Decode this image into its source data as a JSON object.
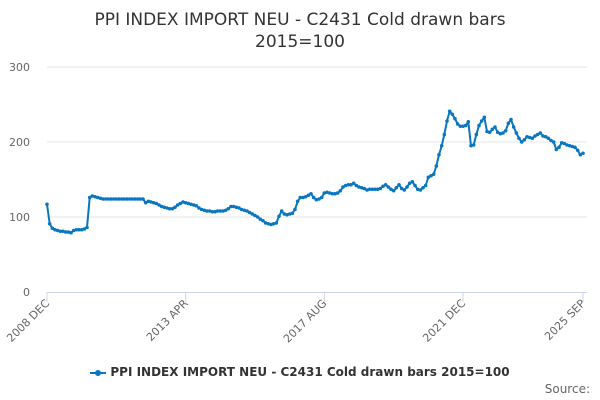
{
  "chart_data": {
    "type": "line",
    "title": "PPI INDEX IMPORT NEU - C2431 Cold drawn bars",
    "subtitle": "2015=100",
    "xlabel": "",
    "ylabel": "",
    "ylim": [
      0,
      300
    ],
    "yticks": [
      0,
      100,
      200,
      300
    ],
    "xticks": [
      "2008 DEC",
      "2013 APR",
      "2017 AUG",
      "2021 DEC",
      "2025 SEP"
    ],
    "grid": true,
    "legend_position": "bottom",
    "color": "#0a76bf",
    "x": [
      "2008 DEC",
      "2009 JAN",
      "2009 FEB",
      "2009 MAR",
      "2009 APR",
      "2009 MAY",
      "2009 JUN",
      "2009 JUL",
      "2009 AUG",
      "2009 SEP",
      "2009 OCT",
      "2009 NOV",
      "2009 DEC",
      "2010 JAN",
      "2010 FEB",
      "2010 MAR",
      "2010 APR",
      "2010 MAY",
      "2010 JUN",
      "2010 JUL",
      "2010 AUG",
      "2010 SEP",
      "2010 OCT",
      "2010 NOV",
      "2010 DEC",
      "2011 JAN",
      "2011 FEB",
      "2011 MAR",
      "2011 APR",
      "2011 MAY",
      "2011 JUN",
      "2011 JUL",
      "2011 AUG",
      "2011 SEP",
      "2011 OCT",
      "2011 NOV",
      "2011 DEC",
      "2012 JAN",
      "2012 FEB",
      "2012 MAR",
      "2012 APR",
      "2012 MAY",
      "2012 JUN",
      "2012 JUL",
      "2012 AUG",
      "2012 SEP",
      "2012 OCT",
      "2012 NOV",
      "2012 DEC",
      "2013 JAN",
      "2013 FEB",
      "2013 MAR",
      "2013 APR",
      "2013 MAY",
      "2013 JUN",
      "2013 JUL",
      "2013 AUG",
      "2013 SEP",
      "2013 OCT",
      "2013 NOV",
      "2013 DEC",
      "2014 JAN",
      "2014 FEB",
      "2014 MAR",
      "2014 APR",
      "2014 MAY",
      "2014 JUN",
      "2014 JUL",
      "2014 AUG",
      "2014 SEP",
      "2014 OCT",
      "2014 NOV",
      "2014 DEC",
      "2015 JAN",
      "2015 FEB",
      "2015 MAR",
      "2015 APR",
      "2015 MAY",
      "2015 JUN",
      "2015 JUL",
      "2015 AUG",
      "2015 SEP",
      "2015 OCT",
      "2015 NOV",
      "2015 DEC",
      "2016 JAN",
      "2016 FEB",
      "2016 MAR",
      "2016 APR",
      "2016 MAY",
      "2016 JUN",
      "2016 JUL",
      "2016 AUG",
      "2016 SEP",
      "2016 OCT",
      "2016 NOV",
      "2016 DEC",
      "2017 JAN",
      "2017 FEB",
      "2017 MAR",
      "2017 APR",
      "2017 MAY",
      "2017 JUN",
      "2017 JUL",
      "2017 AUG",
      "2017 SEP",
      "2017 OCT",
      "2017 NOV",
      "2017 DEC",
      "2018 JAN",
      "2018 FEB",
      "2018 MAR",
      "2018 APR",
      "2018 MAY",
      "2018 JUN",
      "2018 JUL",
      "2018 AUG",
      "2018 SEP",
      "2018 OCT",
      "2018 NOV",
      "2018 DEC",
      "2019 JAN",
      "2019 FEB",
      "2019 MAR",
      "2019 APR",
      "2019 MAY",
      "2019 JUN",
      "2019 JUL",
      "2019 AUG",
      "2019 SEP",
      "2019 OCT",
      "2019 NOV",
      "2019 DEC",
      "2020 JAN",
      "2020 FEB",
      "2020 MAR",
      "2020 APR",
      "2020 MAY",
      "2020 JUN",
      "2020 JUL",
      "2020 AUG",
      "2020 SEP",
      "2020 OCT",
      "2020 NOV",
      "2020 DEC",
      "2021 JAN",
      "2021 FEB",
      "2021 MAR",
      "2021 APR",
      "2021 MAY",
      "2021 JUN",
      "2021 JUL",
      "2021 AUG",
      "2021 SEP",
      "2021 OCT",
      "2021 NOV",
      "2021 DEC",
      "2022 JAN",
      "2022 FEB",
      "2022 MAR",
      "2022 APR",
      "2022 MAY",
      "2022 JUN",
      "2022 JUL",
      "2022 AUG",
      "2022 SEP",
      "2022 OCT",
      "2022 NOV",
      "2022 DEC",
      "2023 JAN",
      "2023 FEB",
      "2023 MAR",
      "2023 APR",
      "2023 MAY",
      "2023 JUN",
      "2023 JUL",
      "2023 AUG",
      "2023 SEP",
      "2023 OCT",
      "2023 NOV",
      "2023 DEC",
      "2024 JAN",
      "2024 FEB",
      "2024 MAR",
      "2024 APR",
      "2024 MAY",
      "2024 JUN",
      "2024 JUL",
      "2024 AUG",
      "2024 SEP",
      "2024 OCT",
      "2024 NOV",
      "2024 DEC",
      "2025 JAN",
      "2025 FEB",
      "2025 MAR",
      "2025 APR",
      "2025 MAY",
      "2025 JUN",
      "2025 JUL",
      "2025 AUG",
      "2025 SEP"
    ],
    "series": [
      {
        "name": "PPI INDEX IMPORT NEU - C2431 Cold drawn bars 2015=100",
        "values": [
          117,
          91,
          85,
          83,
          82,
          81,
          81,
          80,
          80,
          79,
          82,
          83,
          83,
          83,
          84,
          86,
          126,
          128,
          127,
          126,
          125,
          124,
          124,
          124,
          124,
          124,
          124,
          124,
          124,
          124,
          124,
          124,
          124,
          124,
          124,
          124,
          124,
          119,
          121,
          120,
          119,
          118,
          116,
          114,
          113,
          112,
          111,
          111,
          113,
          116,
          118,
          120,
          119,
          118,
          117,
          116,
          115,
          112,
          110,
          109,
          108,
          108,
          107,
          107,
          108,
          108,
          108,
          109,
          111,
          114,
          114,
          113,
          112,
          110,
          109,
          108,
          106,
          104,
          102,
          100,
          97,
          95,
          92,
          91,
          90,
          91,
          92,
          101,
          108,
          104,
          103,
          104,
          105,
          110,
          121,
          126,
          126,
          127,
          129,
          131,
          126,
          123,
          124,
          126,
          132,
          133,
          132,
          131,
          131,
          132,
          135,
          140,
          142,
          143,
          143,
          145,
          142,
          140,
          139,
          138,
          136,
          137,
          137,
          137,
          137,
          138,
          141,
          143,
          140,
          137,
          135,
          139,
          143,
          138,
          136,
          140,
          145,
          147,
          142,
          137,
          136,
          139,
          142,
          153,
          155,
          157,
          168,
          183,
          195,
          210,
          228,
          241,
          237,
          231,
          224,
          221,
          221,
          222,
          227,
          195,
          196,
          210,
          222,
          228,
          233,
          214,
          213,
          217,
          220,
          213,
          211,
          212,
          215,
          225,
          230,
          220,
          212,
          205,
          200,
          203,
          207,
          206,
          205,
          208,
          210,
          212,
          208,
          207,
          205,
          202,
          200,
          190,
          193,
          199,
          198,
          196,
          195,
          194,
          193,
          189,
          183,
          185
        ]
      }
    ]
  },
  "footer": {
    "source_label": "Source:"
  }
}
